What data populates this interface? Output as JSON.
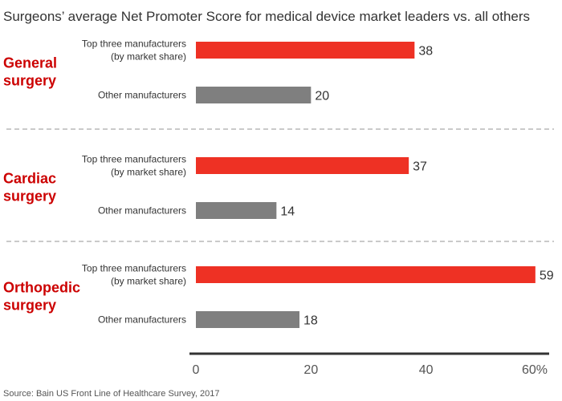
{
  "colors": {
    "top_three": "#ee3124",
    "other": "#7f7f7f",
    "group_label": "#cc0000",
    "axis": "#333333",
    "divider": "#aaaaaa"
  },
  "chart_data": {
    "type": "bar",
    "orientation": "horizontal",
    "title": "Surgeons’ average Net Promoter Score for medical device market leaders vs. all others",
    "groups": [
      {
        "name": "General surgery",
        "label_lines": [
          "General",
          "surgery"
        ],
        "bars": [
          {
            "category_lines": [
              "Top three manufacturers",
              "(by market share)"
            ],
            "value": 38,
            "series": "top_three"
          },
          {
            "category_lines": [
              "Other manufacturers"
            ],
            "value": 20,
            "series": "other"
          }
        ]
      },
      {
        "name": "Cardiac surgery",
        "label_lines": [
          "Cardiac",
          "surgery"
        ],
        "bars": [
          {
            "category_lines": [
              "Top three manufacturers",
              "(by market share)"
            ],
            "value": 37,
            "series": "top_three"
          },
          {
            "category_lines": [
              "Other manufacturers"
            ],
            "value": 14,
            "series": "other"
          }
        ]
      },
      {
        "name": "Orthopedic surgery",
        "label_lines": [
          "Orthopedic",
          "surgery"
        ],
        "bars": [
          {
            "category_lines": [
              "Top three manufacturers",
              "(by market share)"
            ],
            "value": 59,
            "series": "top_three"
          },
          {
            "category_lines": [
              "Other manufacturers"
            ],
            "value": 18,
            "series": "other"
          }
        ]
      }
    ],
    "xlim": [
      0,
      60
    ],
    "xticks": [
      0,
      20,
      40,
      60
    ],
    "xtick_labels": [
      "0",
      "20",
      "40",
      "60%"
    ],
    "grid": false,
    "legend": "none"
  },
  "source": "Source: Bain US Front Line of Healthcare Survey, 2017"
}
